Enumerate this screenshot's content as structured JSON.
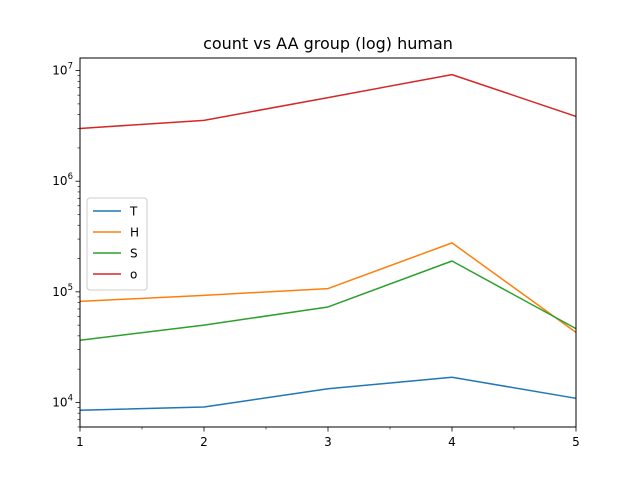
{
  "chart_data": {
    "type": "line",
    "title": "count vs AA group (log) human",
    "xlabel": "",
    "ylabel": "",
    "x": [
      1,
      2,
      3,
      4,
      5
    ],
    "x_ticks": [
      "1",
      "2",
      "3",
      "4",
      "5"
    ],
    "xlim": [
      1,
      5
    ],
    "yscale": "log",
    "ylim": [
      6000,
      13000000
    ],
    "y_ticks": [
      {
        "value": 10000,
        "base": "10",
        "exp": "4"
      },
      {
        "value": 100000,
        "base": "10",
        "exp": "5"
      },
      {
        "value": 1000000,
        "base": "10",
        "exp": "6"
      },
      {
        "value": 10000000,
        "base": "10",
        "exp": "7"
      }
    ],
    "grid": false,
    "legend_position": "center-left",
    "series": [
      {
        "name": "T",
        "color": "#1f77b4",
        "values": [
          8500,
          9100,
          13300,
          16900,
          10900
        ]
      },
      {
        "name": "H",
        "color": "#ff7f0e",
        "values": [
          82000,
          93000,
          107000,
          277000,
          43000
        ]
      },
      {
        "name": "S",
        "color": "#2ca02c",
        "values": [
          36500,
          50000,
          73000,
          190000,
          46500
        ]
      },
      {
        "name": "o",
        "color": "#d62728",
        "values": [
          3000000,
          3550000,
          5700000,
          9200000,
          3850000
        ]
      }
    ]
  }
}
